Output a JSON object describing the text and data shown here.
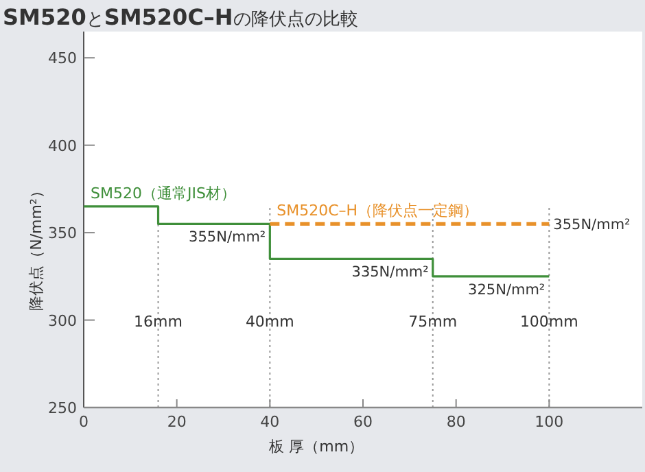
{
  "chart_data": {
    "type": "step",
    "title": "**SM520**と**SM520C–H**の降伏点の比較",
    "xlabel": "板 厚（mm）",
    "ylabel": "降伏点（N/mm²）",
    "xlim": [
      0,
      120
    ],
    "xticks": [
      0,
      20,
      40,
      60,
      80,
      100
    ],
    "ylim": [
      250,
      465
    ],
    "yticks": [
      250,
      300,
      350,
      400,
      450
    ],
    "grid": false,
    "marker": "none",
    "series": [
      {
        "name": "SM520（通常JIS材）",
        "color": "#3f8f3a",
        "x": [
          0,
          16,
          40,
          75,
          100
        ],
        "values": [
          365,
          355,
          335,
          325,
          325
        ],
        "line_style": "solid"
      },
      {
        "name": "SM520C–H（降伏点一定鋼）",
        "color": "#e8912a",
        "x": [
          40,
          100
        ],
        "values": [
          355,
          355
        ],
        "line_style": "dashed"
      }
    ],
    "ref_lines": [
      {
        "axis": "x",
        "value": 16,
        "label": "16mm",
        "line_style": "dotted"
      },
      {
        "axis": "x",
        "value": 40,
        "label": "40mm",
        "line_style": "dotted"
      },
      {
        "axis": "x",
        "value": 75,
        "label": "75mm",
        "line_style": "dotted"
      },
      {
        "axis": "x",
        "value": 100,
        "label": "100mm",
        "line_style": "dotted"
      }
    ],
    "annotations": [
      {
        "text": "355N/mm²",
        "x": 40,
        "y": 355
      },
      {
        "text": "335N/mm²",
        "x": 75,
        "y": 335
      },
      {
        "text": "325N/mm²",
        "x": 100,
        "y": 325
      },
      {
        "text": "355N/mm²",
        "x": 100,
        "y": 355
      }
    ]
  }
}
